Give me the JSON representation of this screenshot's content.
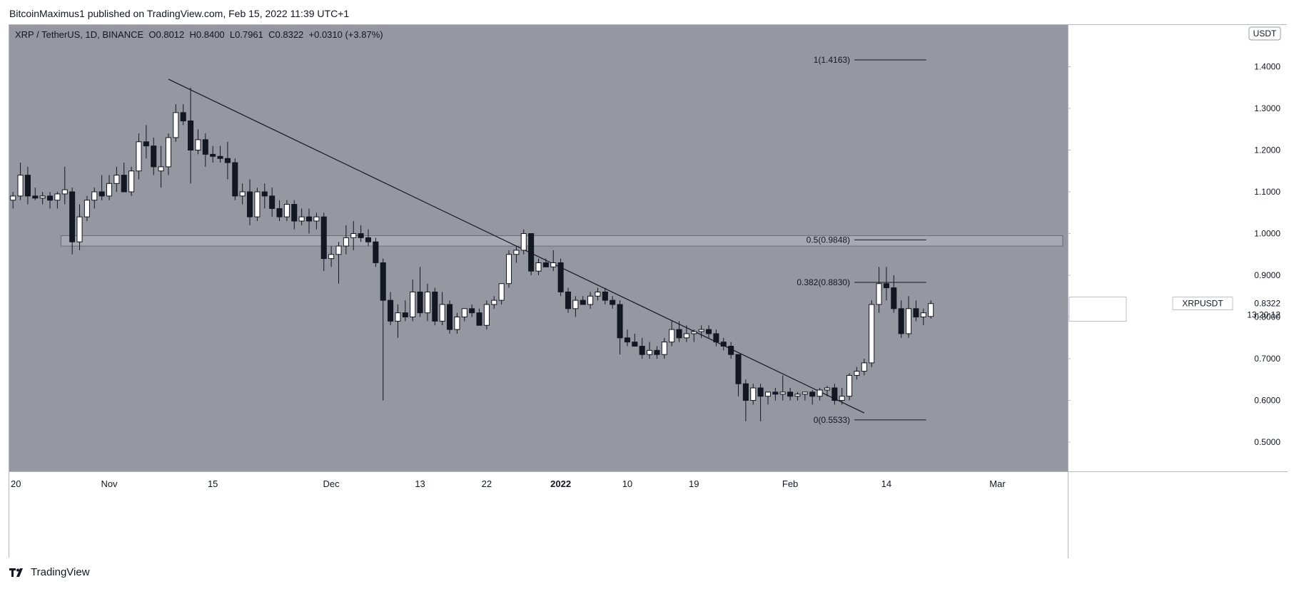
{
  "header": {
    "caption": "BitcoinMaximus1 published on TradingView.com, Feb 15, 2022 11:39 UTC+1"
  },
  "legend": {
    "symbol": "XRP / TetherUS, 1D, BINANCE",
    "o_label": "O",
    "o_value": "0.8012",
    "h_label": "H",
    "h_value": "0.8400",
    "l_label": "L",
    "l_value": "0.7961",
    "c_label": "C",
    "c_value": "0.8322",
    "change": "+0.0310 (+3.87%)"
  },
  "price_axis": {
    "currency": "USDT",
    "ticks": [
      "1.4000",
      "1.3000",
      "1.2000",
      "1.1000",
      "1.0000",
      "0.9000",
      "0.8000",
      "0.7000",
      "0.6000",
      "0.5000"
    ]
  },
  "last_price": {
    "symbol": "XRPUSDT",
    "price": "0.8322",
    "countdown": "13:20:12"
  },
  "time_axis": {
    "ticks": [
      {
        "label": "20",
        "date": "2021-10-20"
      },
      {
        "label": "Nov",
        "date": "2021-11-01"
      },
      {
        "label": "15",
        "date": "2021-11-15"
      },
      {
        "label": "Dec",
        "date": "2021-12-01"
      },
      {
        "label": "13",
        "date": "2021-12-13"
      },
      {
        "label": "22",
        "date": "2021-12-22"
      },
      {
        "label": "2022",
        "date": "2022-01-01"
      },
      {
        "label": "10",
        "date": "2022-01-10"
      },
      {
        "label": "19",
        "date": "2022-01-19"
      },
      {
        "label": "Feb",
        "date": "2022-02-01"
      },
      {
        "label": "14",
        "date": "2022-02-14"
      },
      {
        "label": "Mar",
        "date": "2022-03-01"
      }
    ]
  },
  "fib_levels": [
    {
      "label": "1(1.4163)",
      "value": 1.4163
    },
    {
      "label": "0.5(0.9848)",
      "value": 0.9848
    },
    {
      "label": "0.382(0.8830)",
      "value": 0.883
    },
    {
      "label": "0(0.5533)",
      "value": 0.5533
    }
  ],
  "footer": {
    "brand": "TradingView"
  },
  "colors": {
    "chart_bg": "#9598a1",
    "up_body": "#ffffff",
    "down_body": "#131722",
    "wick": "#131722",
    "zone_fill": "#a7aab2",
    "line": "#131722"
  },
  "chart_data": {
    "type": "candlestick",
    "title": "XRP / TetherUS, 1D, BINANCE",
    "y_range": [
      0.43,
      1.5
    ],
    "x_range": [
      "2021-10-19",
      "2022-03-11"
    ],
    "grid": false,
    "support_zone": {
      "from": 0.97,
      "to": 0.995,
      "start": "2021-10-26",
      "end": "2022-03-11"
    },
    "trendline": {
      "start": {
        "date": "2021-11-09",
        "price": 1.37
      },
      "end": {
        "date": "2022-02-11",
        "price": 0.57
      }
    },
    "fib_range": {
      "start": "2022-02-09",
      "end": "2022-02-19"
    },
    "candles": [
      {
        "date": "2021-10-19",
        "o": 1.08,
        "h": 1.1,
        "l": 1.06,
        "c": 1.09
      },
      {
        "date": "2021-10-20",
        "o": 1.09,
        "h": 1.17,
        "l": 1.08,
        "c": 1.14
      },
      {
        "date": "2021-10-21",
        "o": 1.14,
        "h": 1.16,
        "l": 1.07,
        "c": 1.09
      },
      {
        "date": "2021-10-22",
        "o": 1.09,
        "h": 1.11,
        "l": 1.08,
        "c": 1.085
      },
      {
        "date": "2021-10-23",
        "o": 1.085,
        "h": 1.1,
        "l": 1.07,
        "c": 1.09
      },
      {
        "date": "2021-10-24",
        "o": 1.09,
        "h": 1.1,
        "l": 1.06,
        "c": 1.08
      },
      {
        "date": "2021-10-25",
        "o": 1.08,
        "h": 1.1,
        "l": 1.06,
        "c": 1.095
      },
      {
        "date": "2021-10-26",
        "o": 1.095,
        "h": 1.16,
        "l": 1.07,
        "c": 1.105
      },
      {
        "date": "2021-10-27",
        "o": 1.1,
        "h": 1.11,
        "l": 0.95,
        "c": 0.98
      },
      {
        "date": "2021-10-28",
        "o": 0.98,
        "h": 1.07,
        "l": 0.96,
        "c": 1.04
      },
      {
        "date": "2021-10-29",
        "o": 1.04,
        "h": 1.09,
        "l": 1.03,
        "c": 1.08
      },
      {
        "date": "2021-10-30",
        "o": 1.08,
        "h": 1.11,
        "l": 1.06,
        "c": 1.1
      },
      {
        "date": "2021-10-31",
        "o": 1.1,
        "h": 1.14,
        "l": 1.08,
        "c": 1.09
      },
      {
        "date": "2021-11-01",
        "o": 1.09,
        "h": 1.14,
        "l": 1.08,
        "c": 1.12
      },
      {
        "date": "2021-11-02",
        "o": 1.12,
        "h": 1.16,
        "l": 1.1,
        "c": 1.14
      },
      {
        "date": "2021-11-03",
        "o": 1.14,
        "h": 1.17,
        "l": 1.1,
        "c": 1.1
      },
      {
        "date": "2021-11-04",
        "o": 1.1,
        "h": 1.16,
        "l": 1.09,
        "c": 1.15
      },
      {
        "date": "2021-11-05",
        "o": 1.15,
        "h": 1.24,
        "l": 1.13,
        "c": 1.22
      },
      {
        "date": "2021-11-06",
        "o": 1.22,
        "h": 1.26,
        "l": 1.18,
        "c": 1.21
      },
      {
        "date": "2021-11-07",
        "o": 1.21,
        "h": 1.23,
        "l": 1.14,
        "c": 1.16
      },
      {
        "date": "2021-11-08",
        "o": 1.15,
        "h": 1.21,
        "l": 1.11,
        "c": 1.16
      },
      {
        "date": "2021-11-09",
        "o": 1.16,
        "h": 1.24,
        "l": 1.14,
        "c": 1.23
      },
      {
        "date": "2021-11-10",
        "o": 1.23,
        "h": 1.31,
        "l": 1.22,
        "c": 1.29
      },
      {
        "date": "2021-11-11",
        "o": 1.29,
        "h": 1.31,
        "l": 1.26,
        "c": 1.27
      },
      {
        "date": "2021-11-12",
        "o": 1.27,
        "h": 1.35,
        "l": 1.12,
        "c": 1.2
      },
      {
        "date": "2021-11-13",
        "o": 1.2,
        "h": 1.25,
        "l": 1.19,
        "c": 1.225
      },
      {
        "date": "2021-11-14",
        "o": 1.225,
        "h": 1.24,
        "l": 1.16,
        "c": 1.19
      },
      {
        "date": "2021-11-15",
        "o": 1.19,
        "h": 1.21,
        "l": 1.17,
        "c": 1.185
      },
      {
        "date": "2021-11-16",
        "o": 1.185,
        "h": 1.21,
        "l": 1.17,
        "c": 1.18
      },
      {
        "date": "2021-11-17",
        "o": 1.18,
        "h": 1.22,
        "l": 1.13,
        "c": 1.17
      },
      {
        "date": "2021-11-18",
        "o": 1.17,
        "h": 1.18,
        "l": 1.08,
        "c": 1.09
      },
      {
        "date": "2021-11-19",
        "o": 1.09,
        "h": 1.12,
        "l": 1.07,
        "c": 1.1
      },
      {
        "date": "2021-11-20",
        "o": 1.1,
        "h": 1.13,
        "l": 1.02,
        "c": 1.04
      },
      {
        "date": "2021-11-21",
        "o": 1.04,
        "h": 1.11,
        "l": 1.03,
        "c": 1.1
      },
      {
        "date": "2021-11-22",
        "o": 1.1,
        "h": 1.12,
        "l": 1.06,
        "c": 1.09
      },
      {
        "date": "2021-11-23",
        "o": 1.09,
        "h": 1.11,
        "l": 1.04,
        "c": 1.06
      },
      {
        "date": "2021-11-24",
        "o": 1.06,
        "h": 1.08,
        "l": 1.03,
        "c": 1.04
      },
      {
        "date": "2021-11-25",
        "o": 1.04,
        "h": 1.08,
        "l": 1.03,
        "c": 1.07
      },
      {
        "date": "2021-11-26",
        "o": 1.07,
        "h": 1.08,
        "l": 1.01,
        "c": 1.03
      },
      {
        "date": "2021-11-27",
        "o": 1.03,
        "h": 1.06,
        "l": 1.02,
        "c": 1.04
      },
      {
        "date": "2021-11-28",
        "o": 1.04,
        "h": 1.06,
        "l": 1.0,
        "c": 1.03
      },
      {
        "date": "2021-11-29",
        "o": 1.03,
        "h": 1.05,
        "l": 1.01,
        "c": 1.04
      },
      {
        "date": "2021-11-30",
        "o": 1.04,
        "h": 1.05,
        "l": 0.91,
        "c": 0.94
      },
      {
        "date": "2021-12-01",
        "o": 0.94,
        "h": 0.97,
        "l": 0.92,
        "c": 0.95
      },
      {
        "date": "2021-12-02",
        "o": 0.95,
        "h": 0.98,
        "l": 0.88,
        "c": 0.97
      },
      {
        "date": "2021-12-03",
        "o": 0.97,
        "h": 1.02,
        "l": 0.95,
        "c": 0.99
      },
      {
        "date": "2021-12-04",
        "o": 0.99,
        "h": 1.03,
        "l": 0.96,
        "c": 1.0
      },
      {
        "date": "2021-12-05",
        "o": 1.0,
        "h": 1.02,
        "l": 0.98,
        "c": 0.99
      },
      {
        "date": "2021-12-06",
        "o": 0.99,
        "h": 1.01,
        "l": 0.97,
        "c": 0.98
      },
      {
        "date": "2021-12-07",
        "o": 0.98,
        "h": 0.99,
        "l": 0.92,
        "c": 0.93
      },
      {
        "date": "2021-12-08",
        "o": 0.93,
        "h": 0.94,
        "l": 0.6,
        "c": 0.84
      },
      {
        "date": "2021-12-09",
        "o": 0.84,
        "h": 0.86,
        "l": 0.78,
        "c": 0.79
      },
      {
        "date": "2021-12-10",
        "o": 0.79,
        "h": 0.83,
        "l": 0.75,
        "c": 0.81
      },
      {
        "date": "2021-12-11",
        "o": 0.81,
        "h": 0.84,
        "l": 0.79,
        "c": 0.8
      },
      {
        "date": "2021-12-12",
        "o": 0.8,
        "h": 0.89,
        "l": 0.79,
        "c": 0.86
      },
      {
        "date": "2021-12-13",
        "o": 0.86,
        "h": 0.92,
        "l": 0.8,
        "c": 0.81
      },
      {
        "date": "2021-12-14",
        "o": 0.81,
        "h": 0.88,
        "l": 0.79,
        "c": 0.86
      },
      {
        "date": "2021-12-15",
        "o": 0.86,
        "h": 0.87,
        "l": 0.78,
        "c": 0.79
      },
      {
        "date": "2021-12-16",
        "o": 0.79,
        "h": 0.86,
        "l": 0.78,
        "c": 0.83
      },
      {
        "date": "2021-12-17",
        "o": 0.83,
        "h": 0.84,
        "l": 0.76,
        "c": 0.77
      },
      {
        "date": "2021-12-18",
        "o": 0.77,
        "h": 0.81,
        "l": 0.76,
        "c": 0.8
      },
      {
        "date": "2021-12-19",
        "o": 0.8,
        "h": 0.82,
        "l": 0.79,
        "c": 0.82
      },
      {
        "date": "2021-12-20",
        "o": 0.82,
        "h": 0.83,
        "l": 0.8,
        "c": 0.81
      },
      {
        "date": "2021-12-21",
        "o": 0.81,
        "h": 0.82,
        "l": 0.78,
        "c": 0.78
      },
      {
        "date": "2021-12-22",
        "o": 0.78,
        "h": 0.84,
        "l": 0.77,
        "c": 0.83
      },
      {
        "date": "2021-12-23",
        "o": 0.83,
        "h": 0.85,
        "l": 0.82,
        "c": 0.84
      },
      {
        "date": "2021-12-24",
        "o": 0.84,
        "h": 0.88,
        "l": 0.83,
        "c": 0.88
      },
      {
        "date": "2021-12-25",
        "o": 0.88,
        "h": 0.96,
        "l": 0.87,
        "c": 0.95
      },
      {
        "date": "2021-12-26",
        "o": 0.95,
        "h": 0.97,
        "l": 0.93,
        "c": 0.96
      },
      {
        "date": "2021-12-27",
        "o": 0.96,
        "h": 1.01,
        "l": 0.95,
        "c": 1.0
      },
      {
        "date": "2021-12-28",
        "o": 1.0,
        "h": 1.0,
        "l": 0.9,
        "c": 0.91
      },
      {
        "date": "2021-12-29",
        "o": 0.91,
        "h": 0.94,
        "l": 0.9,
        "c": 0.93
      },
      {
        "date": "2021-12-30",
        "o": 0.93,
        "h": 0.94,
        "l": 0.92,
        "c": 0.92
      },
      {
        "date": "2021-12-31",
        "o": 0.92,
        "h": 0.96,
        "l": 0.91,
        "c": 0.93
      },
      {
        "date": "2022-01-01",
        "o": 0.93,
        "h": 0.94,
        "l": 0.85,
        "c": 0.86
      },
      {
        "date": "2022-01-02",
        "o": 0.86,
        "h": 0.87,
        "l": 0.81,
        "c": 0.82
      },
      {
        "date": "2022-01-03",
        "o": 0.82,
        "h": 0.85,
        "l": 0.8,
        "c": 0.84
      },
      {
        "date": "2022-01-04",
        "o": 0.84,
        "h": 0.85,
        "l": 0.83,
        "c": 0.83
      },
      {
        "date": "2022-01-05",
        "o": 0.83,
        "h": 0.86,
        "l": 0.82,
        "c": 0.85
      },
      {
        "date": "2022-01-06",
        "o": 0.85,
        "h": 0.87,
        "l": 0.84,
        "c": 0.86
      },
      {
        "date": "2022-01-07",
        "o": 0.86,
        "h": 0.87,
        "l": 0.83,
        "c": 0.84
      },
      {
        "date": "2022-01-08",
        "o": 0.84,
        "h": 0.85,
        "l": 0.82,
        "c": 0.83
      },
      {
        "date": "2022-01-09",
        "o": 0.83,
        "h": 0.84,
        "l": 0.71,
        "c": 0.75
      },
      {
        "date": "2022-01-10",
        "o": 0.75,
        "h": 0.77,
        "l": 0.73,
        "c": 0.74
      },
      {
        "date": "2022-01-11",
        "o": 0.74,
        "h": 0.76,
        "l": 0.73,
        "c": 0.73
      },
      {
        "date": "2022-01-12",
        "o": 0.73,
        "h": 0.75,
        "l": 0.7,
        "c": 0.71
      },
      {
        "date": "2022-01-13",
        "o": 0.71,
        "h": 0.74,
        "l": 0.7,
        "c": 0.72
      },
      {
        "date": "2022-01-14",
        "o": 0.72,
        "h": 0.73,
        "l": 0.7,
        "c": 0.71
      },
      {
        "date": "2022-01-15",
        "o": 0.71,
        "h": 0.75,
        "l": 0.7,
        "c": 0.74
      },
      {
        "date": "2022-01-16",
        "o": 0.74,
        "h": 0.79,
        "l": 0.73,
        "c": 0.77
      },
      {
        "date": "2022-01-17",
        "o": 0.77,
        "h": 0.79,
        "l": 0.74,
        "c": 0.75
      },
      {
        "date": "2022-01-18",
        "o": 0.75,
        "h": 0.78,
        "l": 0.74,
        "c": 0.76
      },
      {
        "date": "2022-01-19",
        "o": 0.76,
        "h": 0.77,
        "l": 0.74,
        "c": 0.765
      },
      {
        "date": "2022-01-20",
        "o": 0.765,
        "h": 0.78,
        "l": 0.75,
        "c": 0.77
      },
      {
        "date": "2022-01-21",
        "o": 0.77,
        "h": 0.78,
        "l": 0.75,
        "c": 0.76
      },
      {
        "date": "2022-01-22",
        "o": 0.76,
        "h": 0.77,
        "l": 0.73,
        "c": 0.74
      },
      {
        "date": "2022-01-23",
        "o": 0.74,
        "h": 0.75,
        "l": 0.72,
        "c": 0.73
      },
      {
        "date": "2022-01-24",
        "o": 0.73,
        "h": 0.74,
        "l": 0.7,
        "c": 0.71
      },
      {
        "date": "2022-01-25",
        "o": 0.71,
        "h": 0.71,
        "l": 0.61,
        "c": 0.64
      },
      {
        "date": "2022-01-26",
        "o": 0.64,
        "h": 0.65,
        "l": 0.55,
        "c": 0.6
      },
      {
        "date": "2022-01-27",
        "o": 0.6,
        "h": 0.64,
        "l": 0.59,
        "c": 0.63
      },
      {
        "date": "2022-01-28",
        "o": 0.63,
        "h": 0.64,
        "l": 0.55,
        "c": 0.61
      },
      {
        "date": "2022-01-29",
        "o": 0.61,
        "h": 0.62,
        "l": 0.59,
        "c": 0.62
      },
      {
        "date": "2022-01-30",
        "o": 0.62,
        "h": 0.63,
        "l": 0.6,
        "c": 0.615
      },
      {
        "date": "2022-01-31",
        "o": 0.615,
        "h": 0.66,
        "l": 0.6,
        "c": 0.62
      },
      {
        "date": "2022-02-01",
        "o": 0.62,
        "h": 0.63,
        "l": 0.6,
        "c": 0.61
      },
      {
        "date": "2022-02-02",
        "o": 0.61,
        "h": 0.62,
        "l": 0.6,
        "c": 0.615
      },
      {
        "date": "2022-02-03",
        "o": 0.615,
        "h": 0.62,
        "l": 0.6,
        "c": 0.62
      },
      {
        "date": "2022-02-04",
        "o": 0.62,
        "h": 0.625,
        "l": 0.59,
        "c": 0.61
      },
      {
        "date": "2022-02-05",
        "o": 0.61,
        "h": 0.63,
        "l": 0.6,
        "c": 0.625
      },
      {
        "date": "2022-02-06",
        "o": 0.625,
        "h": 0.635,
        "l": 0.61,
        "c": 0.63
      },
      {
        "date": "2022-02-07",
        "o": 0.63,
        "h": 0.64,
        "l": 0.59,
        "c": 0.6
      },
      {
        "date": "2022-02-08",
        "o": 0.6,
        "h": 0.63,
        "l": 0.59,
        "c": 0.61
      },
      {
        "date": "2022-02-09",
        "o": 0.61,
        "h": 0.665,
        "l": 0.6,
        "c": 0.66
      },
      {
        "date": "2022-02-10",
        "o": 0.66,
        "h": 0.68,
        "l": 0.65,
        "c": 0.67
      },
      {
        "date": "2022-02-11",
        "o": 0.67,
        "h": 0.7,
        "l": 0.66,
        "c": 0.69
      },
      {
        "date": "2022-02-12",
        "o": 0.69,
        "h": 0.84,
        "l": 0.68,
        "c": 0.83
      },
      {
        "date": "2022-02-13",
        "o": 0.83,
        "h": 0.92,
        "l": 0.81,
        "c": 0.88
      },
      {
        "date": "2022-02-14",
        "o": 0.88,
        "h": 0.92,
        "l": 0.84,
        "c": 0.87
      },
      {
        "date": "2022-02-15",
        "o": 0.87,
        "h": 0.9,
        "l": 0.81,
        "c": 0.82
      },
      {
        "date": "2022-02-16",
        "o": 0.82,
        "h": 0.84,
        "l": 0.75,
        "c": 0.76
      },
      {
        "date": "2022-02-17",
        "o": 0.76,
        "h": 0.85,
        "l": 0.75,
        "c": 0.82
      },
      {
        "date": "2022-02-18",
        "o": 0.82,
        "h": 0.84,
        "l": 0.79,
        "c": 0.8
      },
      {
        "date": "2022-02-19",
        "o": 0.8,
        "h": 0.82,
        "l": 0.78,
        "c": 0.81
      },
      {
        "date": "2022-02-20",
        "o": 0.8012,
        "h": 0.84,
        "l": 0.7961,
        "c": 0.8322
      }
    ]
  }
}
